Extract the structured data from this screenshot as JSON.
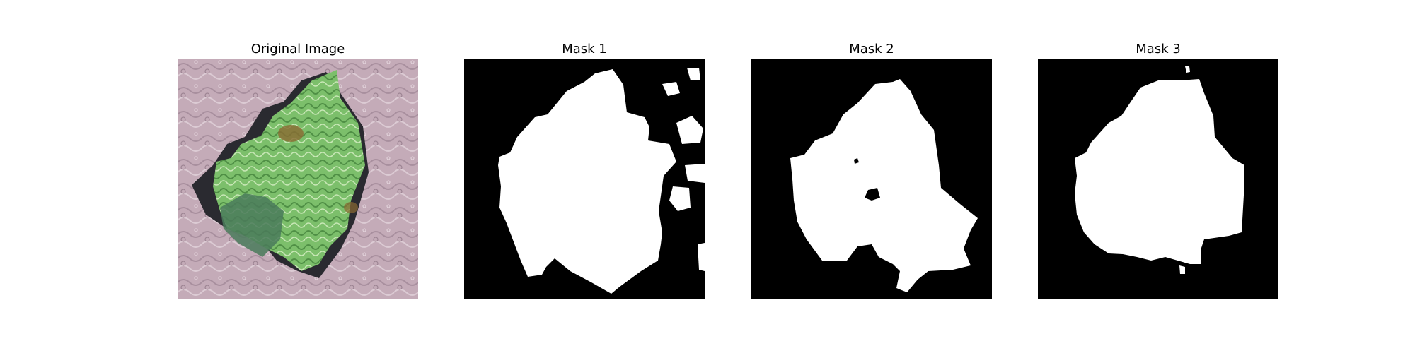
{
  "figure": {
    "panels": [
      {
        "title": "Original Image",
        "kind": "photo",
        "content": "leaf"
      },
      {
        "title": "Mask 1",
        "kind": "binary-mask"
      },
      {
        "title": "Mask 2",
        "kind": "binary-mask"
      },
      {
        "title": "Mask 3",
        "kind": "binary-mask"
      }
    ],
    "colors": {
      "mask_foreground": "#ffffff",
      "mask_background": "#000000",
      "leaf_green": "#7cbf6b",
      "leaf_shadow": "#2a2a30",
      "background_mauve": "#c4abb8"
    }
  }
}
